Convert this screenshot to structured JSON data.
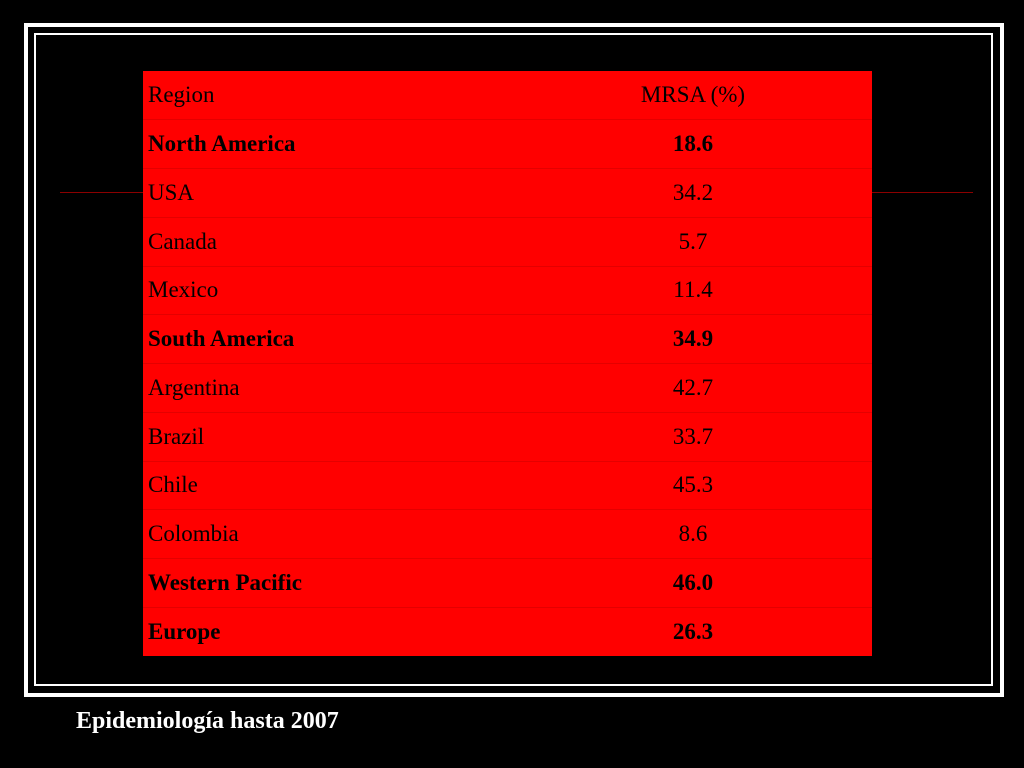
{
  "slide": {
    "caption": "Epidemiología hasta 2007"
  },
  "table": {
    "headers": {
      "region": "Region",
      "value": "MRSA (%)"
    },
    "rows": [
      {
        "region": "North America",
        "value": "18.6",
        "bold": true
      },
      {
        "region": "USA",
        "value": "34.2",
        "bold": false
      },
      {
        "region": "Canada",
        "value": "5.7",
        "bold": false
      },
      {
        "region": "Mexico",
        "value": "11.4",
        "bold": false
      },
      {
        "region": "South America",
        "value": "34.9",
        "bold": true
      },
      {
        "region": "Argentina",
        "value": "42.7",
        "bold": false
      },
      {
        "region": "Brazil",
        "value": "33.7",
        "bold": false
      },
      {
        "region": "Chile",
        "value": "45.3",
        "bold": false
      },
      {
        "region": "Colombia",
        "value": "8.6",
        "bold": false
      },
      {
        "region": "Western Pacific",
        "value": "46.0",
        "bold": true
      },
      {
        "region": "Europe",
        "value": "26.3",
        "bold": true
      }
    ]
  },
  "colors": {
    "background": "#000000",
    "table_fill": "#ff0000",
    "frame": "#ffffff",
    "accent_line": "#8b0000"
  }
}
